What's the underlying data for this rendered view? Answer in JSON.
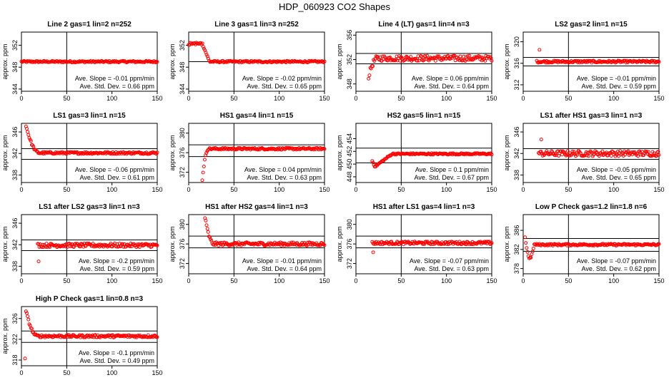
{
  "figure_title": "HDP_060923  CO2 Shapes",
  "ylabel": "approx. ppm",
  "colors": {
    "points": "#ff0000",
    "axes": "#000000"
  },
  "chart_data": [
    {
      "type": "scatter",
      "title": "Line 2 gas=1 lin=2 n=252",
      "xlim": [
        0,
        150
      ],
      "xticks": [
        0,
        50,
        100,
        150
      ],
      "ylim": [
        343.6,
        354.4
      ],
      "yticks": [
        344,
        348,
        352
      ],
      "hlines": [
        349
      ],
      "vline": 50,
      "slope": "Ave. Slope =  -0.01  ppm/min",
      "stddev": "Ave. Std. Dev. =  0.66  ppm",
      "shape": {
        "kind": "flat",
        "x0": 0,
        "x1": 150,
        "base": 349,
        "noise": 0.15,
        "n": 160
      }
    },
    {
      "type": "scatter",
      "title": "Line 3 gas=1 lin=3 n=252",
      "xlim": [
        0,
        150
      ],
      "xticks": [
        0,
        50,
        100,
        150
      ],
      "ylim": [
        343.6,
        354.4
      ],
      "yticks": [
        344,
        348,
        352
      ],
      "hlines": [
        349
      ],
      "vline": 50,
      "slope": "Ave. Slope =  -0.02  ppm/min",
      "stddev": "Ave. Std. Dev. =  0.65  ppm",
      "shape": {
        "kind": "stepdown",
        "x0": 0,
        "x1": 150,
        "base": 349,
        "start": 352.3,
        "xdrop": 15,
        "xend": 23,
        "noise": 0.15,
        "n": 160
      }
    },
    {
      "type": "scatter",
      "title": "Line 4 (LT) gas=1 lin=4 n=3",
      "xlim": [
        0,
        150
      ],
      "xticks": [
        0,
        50,
        100,
        150
      ],
      "ylim": [
        346.8,
        356.5
      ],
      "yticks": [
        348,
        352,
        356
      ],
      "hlines": [
        353,
        351.3
      ],
      "vline": 50,
      "slope": "Ave. Slope =  0.06  ppm/min",
      "stddev": "Ave. Std. Dev. =  0.64  ppm",
      "shape": {
        "kind": "risefast",
        "x0": 14,
        "x1": 150,
        "base": 352.2,
        "start": 349.2,
        "xend": 24,
        "noise": 0.45,
        "n": 150
      }
    },
    {
      "type": "scatter",
      "title": "LS2 gas=2 lin=1 n=15",
      "xlim": [
        0,
        150
      ],
      "xticks": [
        0,
        50,
        100,
        150
      ],
      "ylim": [
        310.8,
        321.8
      ],
      "yticks": [
        312,
        316,
        320
      ],
      "hlines": [
        317.1,
        315.5
      ],
      "vline": 50,
      "slope": "Ave. Slope =  -0.01  ppm/min",
      "stddev": "Ave. Std. Dev. =  0.59  ppm",
      "shape": {
        "kind": "spike",
        "x0": 15,
        "x1": 150,
        "base": 316.3,
        "spikex": 18,
        "spikey": 318.5,
        "noise": 0.2,
        "n": 150
      }
    },
    {
      "type": "scatter",
      "title": "LS1 gas=3 lin=1 n=15",
      "xlim": [
        0,
        150
      ],
      "xticks": [
        0,
        50,
        100,
        150
      ],
      "ylim": [
        336.6,
        347.6
      ],
      "yticks": [
        338,
        342,
        346
      ],
      "hlines": [
        342.9,
        340.9
      ],
      "vline": 50,
      "slope": "Ave. Slope =  -0.06  ppm/min",
      "stddev": "Ave. Std. Dev. =  0.61  ppm",
      "shape": {
        "kind": "decay",
        "x0": 5,
        "x1": 150,
        "base": 342.1,
        "start": 347.2,
        "xend": 20,
        "noise": 0.2,
        "n": 160
      }
    },
    {
      "type": "scatter",
      "title": "HS1 gas=4 lin=1 n=15",
      "xlim": [
        0,
        150
      ],
      "xticks": [
        0,
        50,
        100,
        150
      ],
      "ylim": [
        369.9,
        382.0
      ],
      "yticks": [
        372,
        376,
        380
      ],
      "hlines": [
        377.6,
        375.2
      ],
      "vline": 50,
      "slope": "Ave. Slope =  0.04  ppm/min",
      "stddev": "Ave. Std. Dev. =  0.63  ppm",
      "shape": {
        "kind": "risefast",
        "x0": 15,
        "x1": 150,
        "base": 376.8,
        "start": 370.5,
        "xend": 22,
        "noise": 0.2,
        "n": 150
      }
    },
    {
      "type": "scatter",
      "title": "HS2 gas=5 lin=1 n=15",
      "xlim": [
        0,
        150
      ],
      "xticks": [
        0,
        50,
        100,
        150
      ],
      "ylim": [
        447.1,
        456.4
      ],
      "yticks": [
        448,
        450,
        452,
        454
      ],
      "hlines": [
        452.5,
        450.2
      ],
      "vline": 50,
      "slope": "Ave. Slope =  0.1  ppm/min",
      "stddev": "Ave. Std. Dev. =  0.67  ppm",
      "shape": {
        "kind": "dipthenrise",
        "x0": 18,
        "x1": 150,
        "base": 451.6,
        "start": 450.5,
        "min": 449.6,
        "xend": 40,
        "noise": 0.12,
        "n": 150
      }
    },
    {
      "type": "scatter",
      "title": "LS1 after HS1 gas=3 lin=1 n=3",
      "xlim": [
        0,
        150
      ],
      "xticks": [
        0,
        50,
        100,
        150
      ],
      "ylim": [
        336.6,
        347.6
      ],
      "yticks": [
        338,
        342,
        346
      ],
      "hlines": [
        342.9,
        340.9
      ],
      "vline": 50,
      "slope": "Ave. Slope =  -0.05  ppm/min",
      "stddev": "Ave. Std. Dev. =  0.65  ppm",
      "shape": {
        "kind": "spike",
        "x0": 17,
        "x1": 150,
        "base": 342.0,
        "spikex": 20,
        "spikey": 344.6,
        "noise": 0.5,
        "n": 150
      }
    },
    {
      "type": "scatter",
      "title": "LS1 after LS2 gas=3 lin=1 n=3",
      "xlim": [
        0,
        150
      ],
      "xticks": [
        0,
        50,
        100,
        150
      ],
      "ylim": [
        336.6,
        347.6
      ],
      "yticks": [
        338,
        342,
        346
      ],
      "hlines": [
        342.9,
        340.9
      ],
      "vline": 50,
      "slope": "Ave. Slope =  -0.2  ppm/min",
      "stddev": "Ave. Std. Dev. =  0.59  ppm",
      "shape": {
        "kind": "dip",
        "x0": 18,
        "x1": 150,
        "base": 341.9,
        "dipx": 19,
        "dipy": 338.9,
        "noise": 0.35,
        "n": 150
      }
    },
    {
      "type": "scatter",
      "title": "HS1 after HS2 gas=4 lin=1 n=3",
      "xlim": [
        0,
        150
      ],
      "xticks": [
        0,
        50,
        100,
        150
      ],
      "ylim": [
        369.9,
        382.0
      ],
      "yticks": [
        372,
        376,
        380
      ],
      "hlines": [
        377.6,
        375.2
      ],
      "vline": 50,
      "slope": "Ave. Slope =  -0.01  ppm/min",
      "stddev": "Ave. Std. Dev. =  0.64  ppm",
      "shape": {
        "kind": "decay",
        "x0": 18,
        "x1": 150,
        "base": 376.0,
        "start": 381.4,
        "xend": 28,
        "noise": 0.35,
        "n": 150
      }
    },
    {
      "type": "scatter",
      "title": "HS1 after LS1 gas=4 lin=1 n=3",
      "xlim": [
        0,
        150
      ],
      "xticks": [
        0,
        50,
        100,
        150
      ],
      "ylim": [
        369.9,
        382.0
      ],
      "yticks": [
        372,
        376,
        380
      ],
      "hlines": [
        377.6,
        375.2
      ],
      "vline": 50,
      "slope": "Ave. Slope =  -0.07  ppm/min",
      "stddev": "Ave. Std. Dev. =  0.63  ppm",
      "shape": {
        "kind": "dip",
        "x0": 18,
        "x1": 150,
        "base": 376.2,
        "dipx": 19,
        "dipy": 374.3,
        "noise": 0.3,
        "n": 150
      }
    },
    {
      "type": "scatter",
      "title": "Low P Check gas=1.2 lin=1.8 n=6",
      "xlim": [
        0,
        150
      ],
      "xticks": [
        0,
        50,
        100,
        150
      ],
      "ylim": [
        376.9,
        389.3
      ],
      "yticks": [
        378,
        382,
        386
      ],
      "hlines": [
        384.3,
        381.6
      ],
      "vline": 50,
      "slope": "Ave. Slope =  -0.07  ppm/min",
      "stddev": "Ave. Std. Dev. =  0.62  ppm",
      "shape": {
        "kind": "diprecover",
        "x0": 2,
        "x1": 150,
        "base": 383.0,
        "start": 384.6,
        "min": 381.0,
        "xend": 12,
        "noise": 0.2,
        "n": 160
      }
    },
    {
      "type": "scatter",
      "title": "High P Check gas=1 lin=0.8 n=3",
      "xlim": [
        0,
        150
      ],
      "xticks": [
        0,
        50,
        100,
        150
      ],
      "ylim": [
        316.9,
        328.3
      ],
      "yticks": [
        318,
        322,
        326
      ],
      "hlines": [
        323.6,
        321.4
      ],
      "vline": 50,
      "slope": "Ave. Slope =  -0.1  ppm/min",
      "stddev": "Ave. Std. Dev. =  0.49  ppm",
      "shape": {
        "kind": "decay",
        "x0": 5,
        "x1": 150,
        "base": 322.6,
        "start": 327.5,
        "xend": 18,
        "noise": 0.25,
        "n": 160,
        "outlier": [
          4,
          318.3
        ]
      }
    }
  ]
}
